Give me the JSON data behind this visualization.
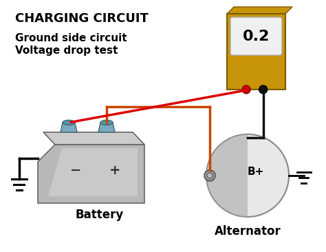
{
  "title": "CHARGING CIRCUIT",
  "subtitle_line1": "Ground side circuit",
  "subtitle_line2": "Voltage drop test",
  "battery_label": "Battery",
  "alternator_label": "Alternator",
  "meter_value": "0.2",
  "bg_color": "#ffffff",
  "wire_red": "#dd0000",
  "wire_orange": "#cc4400",
  "wire_black": "#111111",
  "title_fontsize": 13,
  "subtitle_fontsize": 11,
  "label_fontsize": 12
}
